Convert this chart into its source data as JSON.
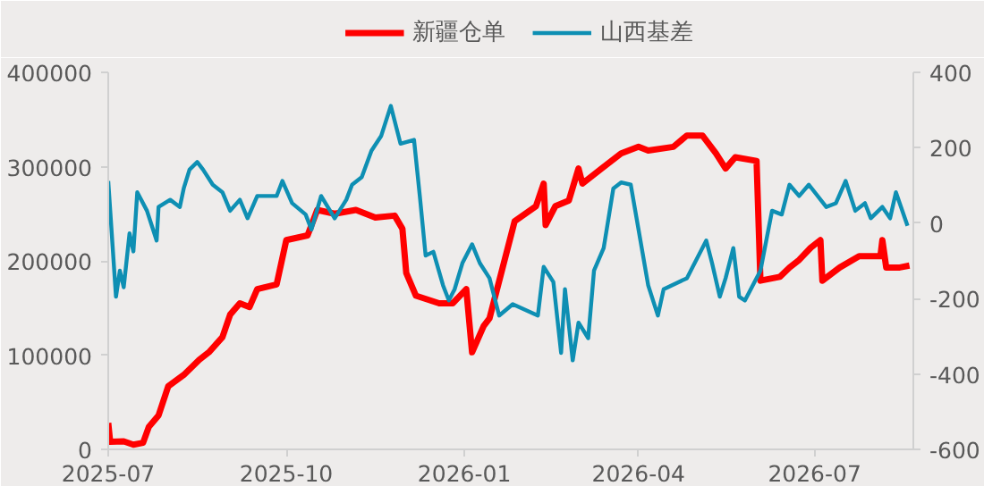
{
  "chart_data": {
    "type": "line",
    "xlim": [
      "2025-07-01",
      "2026-08-21"
    ],
    "xticks": [
      {
        "value": "2025-07-01",
        "label": "2025-07"
      },
      {
        "value": "2025-10-01",
        "label": "2025-10"
      },
      {
        "value": "2026-01-01",
        "label": "2026-01"
      },
      {
        "value": "2026-04-01",
        "label": "2026-04"
      },
      {
        "value": "2026-07-01",
        "label": "2026-07"
      }
    ],
    "ylim": [
      0,
      400000
    ],
    "yticks": [
      0,
      100000,
      200000,
      300000,
      400000
    ],
    "y2lim": [
      -600,
      400
    ],
    "y2ticks": [
      -600,
      -400,
      -200,
      0,
      200,
      400
    ],
    "grid": false,
    "legend": "top",
    "series": [
      {
        "name": "新疆仓单",
        "color": "#ff0000",
        "x": [
          "2025-07-01",
          "2025-07-02",
          "2025-07-09",
          "2025-07-14",
          "2025-07-19",
          "2025-07-22",
          "2025-07-27",
          "2025-08-01",
          "2025-08-09",
          "2025-08-17",
          "2025-08-22",
          "2025-08-29",
          "2025-09-02",
          "2025-09-07",
          "2025-09-12",
          "2025-09-16",
          "2025-09-26",
          "2025-10-01",
          "2025-10-12",
          "2025-10-17",
          "2025-10-26",
          "2025-11-06",
          "2025-11-16",
          "2025-11-26",
          "2025-11-30",
          "2025-12-02",
          "2025-12-07",
          "2025-12-19",
          "2025-12-26",
          "2026-01-02",
          "2026-01-05",
          "2026-01-11",
          "2026-01-14",
          "2026-01-27",
          "2026-02-07",
          "2026-02-11",
          "2026-02-12",
          "2026-02-17",
          "2026-02-24",
          "2026-03-01",
          "2026-03-03",
          "2026-03-13",
          "2026-03-23",
          "2026-04-01",
          "2026-04-06",
          "2026-04-19",
          "2026-04-26",
          "2026-05-04",
          "2026-05-11",
          "2026-05-16",
          "2026-05-21",
          "2026-06-01",
          "2026-06-03",
          "2026-06-13",
          "2026-06-18",
          "2026-06-23",
          "2026-06-29",
          "2026-07-04",
          "2026-07-05",
          "2026-07-14",
          "2026-07-24",
          "2026-08-04",
          "2026-08-05",
          "2026-08-07",
          "2026-08-14",
          "2026-08-19"
        ],
        "values": [
          28000,
          8000,
          8500,
          5000,
          7000,
          24000,
          36000,
          67000,
          79000,
          95000,
          103000,
          119000,
          143000,
          155000,
          151000,
          170000,
          175000,
          222000,
          227000,
          254000,
          250000,
          254000,
          246000,
          248000,
          234000,
          187000,
          163000,
          155000,
          155000,
          170000,
          103000,
          131000,
          139000,
          242000,
          258000,
          282000,
          238000,
          258000,
          264000,
          298000,
          282000,
          298000,
          314000,
          321000,
          317000,
          321000,
          333000,
          333000,
          314000,
          298000,
          310000,
          306000,
          179000,
          183000,
          193000,
          201000,
          214000,
          222000,
          179000,
          193000,
          205000,
          205000,
          222000,
          193000,
          193000,
          195000
        ]
      },
      {
        "name": "山西基差",
        "color": "#0e8fb3",
        "axis": "y2",
        "x": [
          "2025-07-01",
          "2025-07-05",
          "2025-07-07",
          "2025-07-09",
          "2025-07-12",
          "2025-07-14",
          "2025-07-16",
          "2025-07-21",
          "2025-07-26",
          "2025-07-27",
          "2025-08-02",
          "2025-08-07",
          "2025-08-09",
          "2025-08-12",
          "2025-08-16",
          "2025-08-19",
          "2025-08-24",
          "2025-08-29",
          "2025-09-02",
          "2025-09-07",
          "2025-09-11",
          "2025-09-16",
          "2025-09-26",
          "2025-09-29",
          "2025-10-04",
          "2025-10-11",
          "2025-10-14",
          "2025-10-19",
          "2025-10-26",
          "2025-11-01",
          "2025-11-04",
          "2025-11-09",
          "2025-11-14",
          "2025-11-19",
          "2025-11-24",
          "2025-11-29",
          "2025-12-06",
          "2025-12-09",
          "2025-12-12",
          "2025-12-16",
          "2025-12-21",
          "2025-12-24",
          "2025-12-27",
          "2025-12-31",
          "2026-01-05",
          "2026-01-09",
          "2026-01-14",
          "2026-01-19",
          "2026-01-26",
          "2026-02-08",
          "2026-02-11",
          "2026-02-16",
          "2026-02-20",
          "2026-02-22",
          "2026-02-26",
          "2026-03-01",
          "2026-03-06",
          "2026-03-09",
          "2026-03-14",
          "2026-03-19",
          "2026-03-23",
          "2026-03-28",
          "2026-04-06",
          "2026-04-11",
          "2026-04-14",
          "2026-04-26",
          "2026-04-29",
          "2026-05-06",
          "2026-05-09",
          "2026-05-13",
          "2026-05-16",
          "2026-05-20",
          "2026-05-23",
          "2026-05-26",
          "2026-06-03",
          "2026-06-09",
          "2026-06-14",
          "2026-06-18",
          "2026-06-23",
          "2026-06-28",
          "2026-07-07",
          "2026-07-12",
          "2026-07-17",
          "2026-07-22",
          "2026-07-27",
          "2026-07-30",
          "2026-08-05",
          "2026-08-09",
          "2026-08-12",
          "2026-08-18"
        ],
        "values": [
          112,
          -195,
          -126,
          -170,
          -27,
          -75,
          82,
          33,
          -46,
          43,
          62,
          43,
          92,
          142,
          162,
          142,
          102,
          82,
          33,
          62,
          13,
          72,
          72,
          112,
          53,
          23,
          -17,
          72,
          13,
          62,
          102,
          122,
          192,
          231,
          311,
          211,
          221,
          72,
          -86,
          -76,
          -165,
          -205,
          -175,
          -106,
          -56,
          -106,
          -146,
          -245,
          -215,
          -245,
          -116,
          -156,
          -344,
          -175,
          -364,
          -264,
          -305,
          -126,
          -66,
          92,
          108,
          102,
          -165,
          -245,
          -175,
          -146,
          -116,
          -46,
          -106,
          -195,
          -146,
          -66,
          -195,
          -205,
          -126,
          33,
          23,
          102,
          72,
          102,
          43,
          53,
          112,
          33,
          53,
          13,
          43,
          13,
          82,
          -7
        ]
      }
    ]
  }
}
